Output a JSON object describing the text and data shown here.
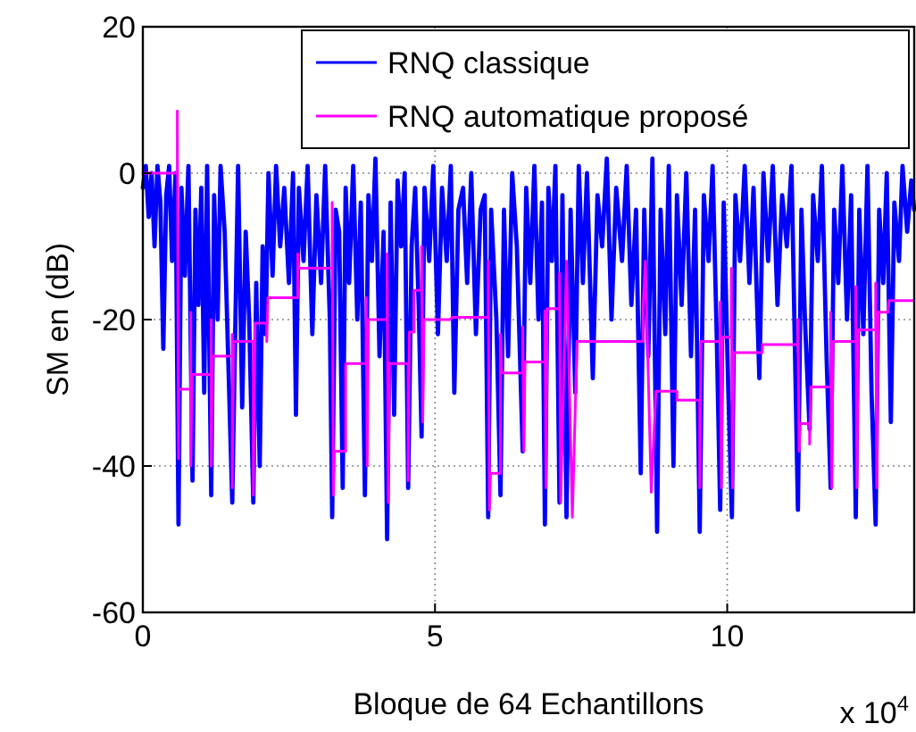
{
  "chart_data": {
    "type": "line",
    "xlabel": "Bloque de 64 Echantillons",
    "ylabel": "SM en (dB)",
    "annotations": [
      "x 10$^{4}$"
    ],
    "xlim": [
      0,
      13.2
    ],
    "xticks": [
      0,
      5,
      10
    ],
    "ylim": [
      -60,
      20
    ],
    "yticks": [
      -60,
      -40,
      -20,
      0,
      20
    ],
    "grid": true,
    "legend": "top right",
    "line_style": "solid",
    "marker": "none",
    "series": [
      {
        "name": "RNQ classique",
        "color": "#0000ff",
        "x": [
          0,
          0.05,
          0.1,
          0.15,
          0.2,
          0.25,
          0.3,
          0.35,
          0.4,
          0.45,
          0.5,
          0.56,
          0.61,
          0.66,
          0.72,
          0.78,
          0.85,
          0.9,
          0.95,
          1.0,
          1.05,
          1.1,
          1.17,
          1.22,
          1.28,
          1.33,
          1.4,
          1.46,
          1.53,
          1.58,
          1.63,
          1.7,
          1.76,
          1.82,
          1.89,
          1.94,
          2.0,
          2.05,
          2.1,
          2.15,
          2.22,
          2.28,
          2.35,
          2.42,
          2.5,
          2.57,
          2.62,
          2.67,
          2.75,
          2.82,
          2.9,
          2.97,
          3.05,
          3.12,
          3.2,
          3.24,
          3.3,
          3.36,
          3.42,
          3.47,
          3.53,
          3.6,
          3.67,
          3.73,
          3.8,
          3.86,
          3.92,
          3.98,
          4.05,
          4.12,
          4.18,
          4.24,
          4.3,
          4.36,
          4.42,
          4.48,
          4.54,
          4.6,
          4.66,
          4.72,
          4.77,
          4.82,
          4.9,
          4.97,
          5.05,
          5.12,
          5.2,
          5.27,
          5.33,
          5.4,
          5.48,
          5.55,
          5.62,
          5.7,
          5.78,
          5.85,
          5.91,
          5.96,
          6.05,
          6.12,
          6.18,
          6.25,
          6.32,
          6.4,
          6.5,
          6.56,
          6.63,
          6.7,
          6.77,
          6.83,
          6.88,
          6.94,
          7.0,
          7.06,
          7.13,
          7.18,
          7.25,
          7.32,
          7.4,
          7.46,
          7.53,
          7.6,
          7.7,
          7.78,
          7.86,
          7.94,
          8.02,
          8.1,
          8.2,
          8.28,
          8.36,
          8.44,
          8.52,
          8.58,
          8.65,
          8.72,
          8.8,
          8.86,
          8.94,
          9.0,
          9.08,
          9.14,
          9.22,
          9.3,
          9.38,
          9.45,
          9.53,
          9.6,
          9.68,
          9.75,
          9.82,
          9.88,
          9.94,
          10.02,
          10.08,
          10.14,
          10.22,
          10.3,
          10.38,
          10.45,
          10.55,
          10.62,
          10.7,
          10.78,
          10.86,
          10.94,
          11.02,
          11.1,
          11.21,
          11.27,
          11.33,
          11.41,
          11.47,
          11.55,
          11.62,
          11.7,
          11.77,
          11.83,
          11.9,
          11.97,
          12.05,
          12.12,
          12.2,
          12.26,
          12.33,
          12.4,
          12.47,
          12.54,
          12.6,
          12.67,
          12.73,
          12.8,
          12.86,
          12.94,
          13.0,
          13.08,
          13.15,
          13.2
        ],
        "values": [
          -2,
          1,
          -6,
          0,
          -10,
          1,
          -4,
          -24,
          -3,
          1,
          -12,
          0,
          -48,
          -2,
          -14,
          1,
          -42,
          -5,
          -18,
          -2,
          -30,
          1,
          -44,
          -3,
          -20,
          1,
          -8,
          -25,
          -45,
          -22,
          1,
          -32,
          -8,
          -20,
          -45,
          -15,
          -40,
          -10,
          -22,
          0,
          -14,
          1,
          -10,
          -2,
          -15,
          0,
          -33,
          -2,
          -12,
          1,
          -22,
          -3,
          -15,
          1,
          -20,
          -47,
          -5,
          -8,
          -43,
          -2,
          -15,
          1,
          -20,
          -4,
          -44,
          -3,
          -12,
          2,
          -25,
          -8,
          -50,
          -4,
          -33,
          -1,
          -10,
          0,
          -43,
          -10,
          -2,
          -18,
          -36,
          -2,
          -12,
          1,
          -22,
          -2,
          -12,
          1,
          -30,
          -5,
          -2,
          -15,
          0,
          -22,
          -5,
          -3,
          -47,
          -5,
          -20,
          -44,
          -5,
          -25,
          0,
          -10,
          -38,
          -2,
          -15,
          1,
          -20,
          -4,
          -48,
          -2,
          -12,
          1,
          -45,
          -3,
          -47,
          -5,
          -30,
          1,
          -15,
          0,
          -28,
          -3,
          -10,
          2,
          -20,
          -2,
          -12,
          1,
          -18,
          -5,
          -41,
          -5,
          -25,
          2,
          -49,
          -5,
          -22,
          1,
          -40,
          -3,
          -18,
          0,
          -25,
          -5,
          -49,
          -3,
          -12,
          1,
          -22,
          -46,
          -4,
          -30,
          -47,
          -3,
          -12,
          1,
          -15,
          -2,
          -28,
          0,
          -12,
          1,
          -18,
          -3,
          -10,
          1,
          -46,
          -5,
          -20,
          -35,
          -3,
          -12,
          1,
          -25,
          -43,
          -5,
          -15,
          1,
          -20,
          -3,
          -47,
          -5,
          -22,
          1,
          -30,
          -48,
          -5,
          -15,
          0,
          -34,
          -4,
          -12,
          1,
          -8,
          -1,
          -5
        ]
      },
      {
        "name": "RNQ automatique proposé",
        "color": "#ff00ff",
        "x": [
          0,
          0.59,
          0.59,
          0.61,
          0.61,
          0.82,
          0.82,
          0.82,
          0.84,
          1.17,
          1.17,
          1.17,
          1.19,
          1.53,
          1.53,
          1.53,
          1.55,
          1.89,
          1.89,
          1.92,
          2.12,
          2.12,
          2.14,
          2.65,
          2.65,
          2.67,
          3.24,
          3.24,
          3.26,
          3.28,
          3.47,
          3.47,
          3.82,
          3.82,
          3.84,
          3.86,
          4.18,
          4.18,
          4.2,
          4.22,
          4.54,
          4.54,
          4.56,
          4.64,
          4.64,
          4.77,
          4.77,
          4.79,
          4.81,
          5.25,
          5.3,
          5.91,
          5.91,
          5.93,
          5.95,
          6.12,
          6.12,
          6.14,
          6.5,
          6.5,
          6.52,
          6.54,
          6.88,
          6.88,
          6.9,
          6.92,
          7.13,
          7.13,
          7.15,
          7.25,
          7.35,
          7.43,
          8.56,
          8.56,
          8.6,
          8.7,
          8.78,
          9.14,
          9.14,
          9.53,
          9.53,
          9.55,
          9.88,
          9.88,
          9.9,
          9.92,
          10.07,
          10.07,
          10.09,
          10.11,
          10.6,
          10.6,
          11.21,
          11.21,
          11.23,
          11.25,
          11.41,
          11.41,
          11.43,
          11.77,
          11.77,
          11.79,
          11.81,
          12.2,
          12.2,
          12.22,
          12.24,
          12.54,
          12.54,
          12.56,
          12.58,
          12.75,
          12.77,
          13.2
        ],
        "values": [
          0,
          0,
          8.5,
          -39,
          -29.5,
          -29.5,
          -19,
          -40,
          -27.5,
          -27.5,
          -20,
          -40,
          -25,
          -25,
          -22,
          -43,
          -23,
          -23,
          -44,
          -20.5,
          -20.5,
          -23,
          -17,
          -17,
          -11,
          -13,
          -13,
          -4,
          -44,
          -38,
          -38,
          -26,
          -26,
          -17,
          -40,
          -20,
          -20,
          -11,
          -45,
          -26,
          -26,
          -42,
          -21.7,
          -21.7,
          -16,
          -16,
          -10,
          -34,
          -20,
          -20,
          -19.7,
          -19.7,
          -12,
          -46,
          -41,
          -41,
          -22,
          -27.3,
          -27.3,
          -21,
          -38,
          -25.8,
          -25.8,
          -18.8,
          -43,
          -18.5,
          -18.5,
          -13.7,
          -45,
          -12,
          -47,
          -23,
          -23,
          -18.4,
          -12,
          -43.6,
          -29.8,
          -29.8,
          -31,
          -31,
          -43,
          -23,
          -23,
          -17.6,
          -43,
          -22.4,
          -22.4,
          -13,
          -43,
          -24.5,
          -24.5,
          -23.4,
          -23.4,
          -20,
          -38,
          -34.2,
          -34.2,
          -37,
          -29.2,
          -29.2,
          -19,
          -43,
          -23,
          -23,
          -15.5,
          -43,
          -21.4,
          -21.4,
          -15,
          -43,
          -19,
          -19,
          -17.4,
          -17.4
        ]
      }
    ]
  }
}
